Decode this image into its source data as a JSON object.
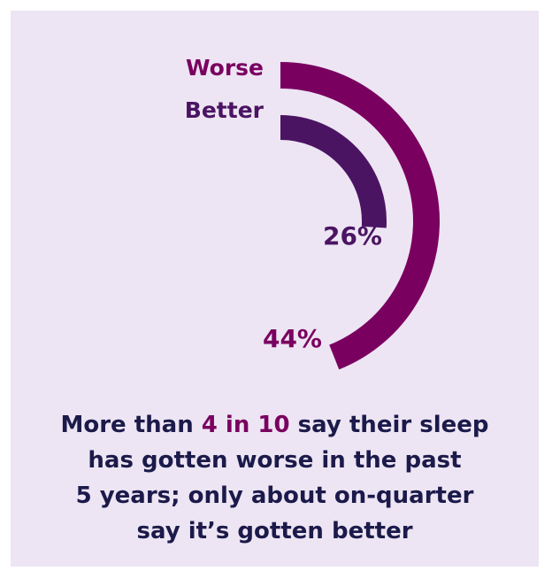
{
  "colors": {
    "background": "#ede5f3",
    "worse": "#7a0060",
    "better": "#4b1462",
    "caption_text": "#1b1a4a"
  },
  "chart_data": {
    "type": "radial-bar",
    "series": [
      {
        "name": "Worse",
        "value": 44,
        "label": "44%",
        "color": "#7a0060"
      },
      {
        "name": "Better",
        "value": 26,
        "label": "26%",
        "color": "#4b1462"
      }
    ],
    "max": 100,
    "unit": "%"
  },
  "caption": {
    "line1_pre": "More than",
    "line1_highlight": "4 in 10",
    "line1_post": "say their sleep",
    "line2": "has gotten worse in the past",
    "line3": "5 years; only about on-quarter",
    "line4": "say it’s gotten better"
  }
}
